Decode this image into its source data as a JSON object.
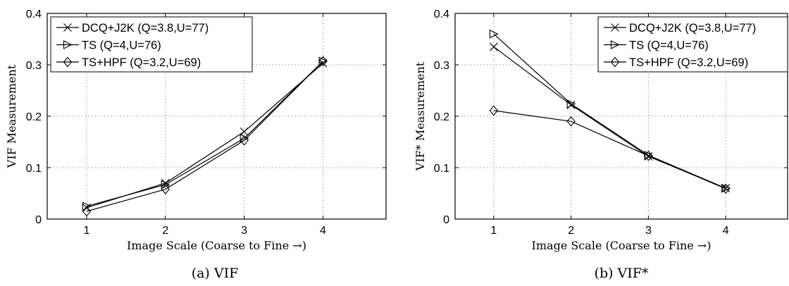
{
  "chart_data": [
    {
      "type": "line",
      "caption": "(a) VIF",
      "xlabel": "Image Scale (Coarse to Fine →)",
      "ylabel": "VIF Measurement",
      "xlim": [
        0.5,
        4.8
      ],
      "ylim": [
        0,
        0.4
      ],
      "xticks": [
        1,
        2,
        3,
        4
      ],
      "yticks": [
        0,
        0.1,
        0.2,
        0.3,
        0.4
      ],
      "grid": true,
      "legend_position": "top-left",
      "x": [
        1,
        2,
        3,
        4
      ],
      "series": [
        {
          "name": "DCQ+J2K (Q=3.8,U=77)",
          "marker": "x",
          "values": [
            0.022,
            0.07,
            0.17,
            0.303
          ]
        },
        {
          "name": "TS (Q=4,U=76)",
          "marker": "triangle-right",
          "values": [
            0.025,
            0.067,
            0.157,
            0.307
          ]
        },
        {
          "name": "TS+HPF (Q=3.2,U=69)",
          "marker": "diamond",
          "values": [
            0.015,
            0.058,
            0.153,
            0.307
          ]
        }
      ]
    },
    {
      "type": "line",
      "caption": "(b) VIF*",
      "xlabel": "Image Scale (Coarse to Fine →)",
      "ylabel": "VIF* Measurement",
      "xlim": [
        0.5,
        4.8
      ],
      "ylim": [
        0,
        0.4
      ],
      "xticks": [
        1,
        2,
        3,
        4
      ],
      "yticks": [
        0,
        0.1,
        0.2,
        0.3,
        0.4
      ],
      "grid": true,
      "legend_position": "top-right",
      "x": [
        1,
        2,
        3,
        4
      ],
      "series": [
        {
          "name": "DCQ+J2K (Q=3.8,U=77)",
          "marker": "x",
          "values": [
            0.335,
            0.222,
            0.122,
            0.06
          ]
        },
        {
          "name": "TS (Q=4,U=76)",
          "marker": "triangle-right",
          "values": [
            0.36,
            0.224,
            0.124,
            0.06
          ]
        },
        {
          "name": "TS+HPF (Q=3.2,U=69)",
          "marker": "diamond",
          "values": [
            0.211,
            0.19,
            0.123,
            0.059
          ]
        }
      ]
    }
  ]
}
